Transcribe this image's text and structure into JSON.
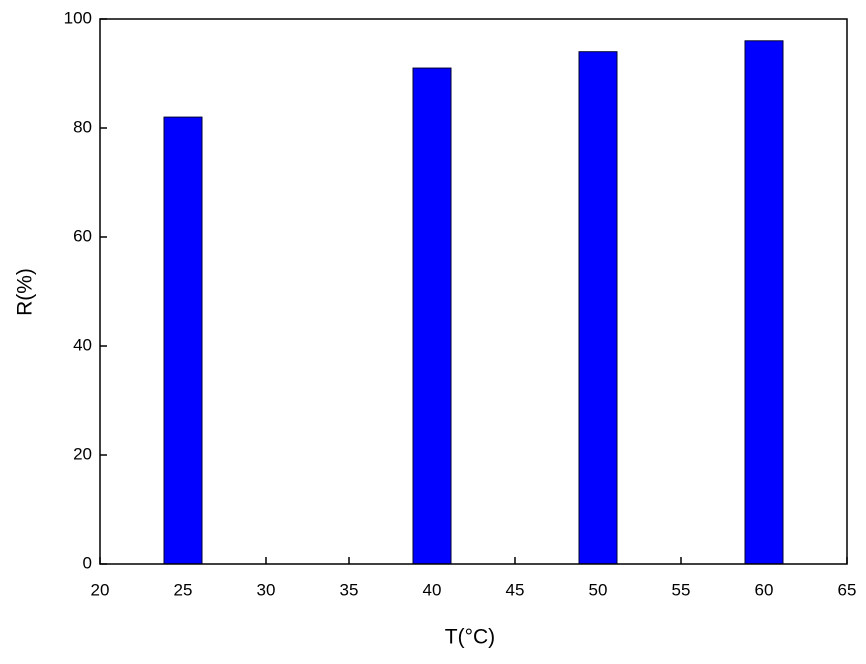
{
  "chart_data": {
    "type": "bar",
    "x_label": "T(°C)",
    "y_label": "R(%)",
    "x": [
      25,
      40,
      50,
      60
    ],
    "values": [
      82,
      91,
      94,
      96
    ],
    "color": "#0000ff",
    "xlim": [
      20,
      65
    ],
    "xticks": [
      20,
      25,
      30,
      35,
      40,
      45,
      50,
      55,
      60,
      65
    ],
    "ylim": [
      0,
      100
    ],
    "yticks": [
      0,
      20,
      40,
      60,
      80,
      100
    ],
    "grid": false
  }
}
